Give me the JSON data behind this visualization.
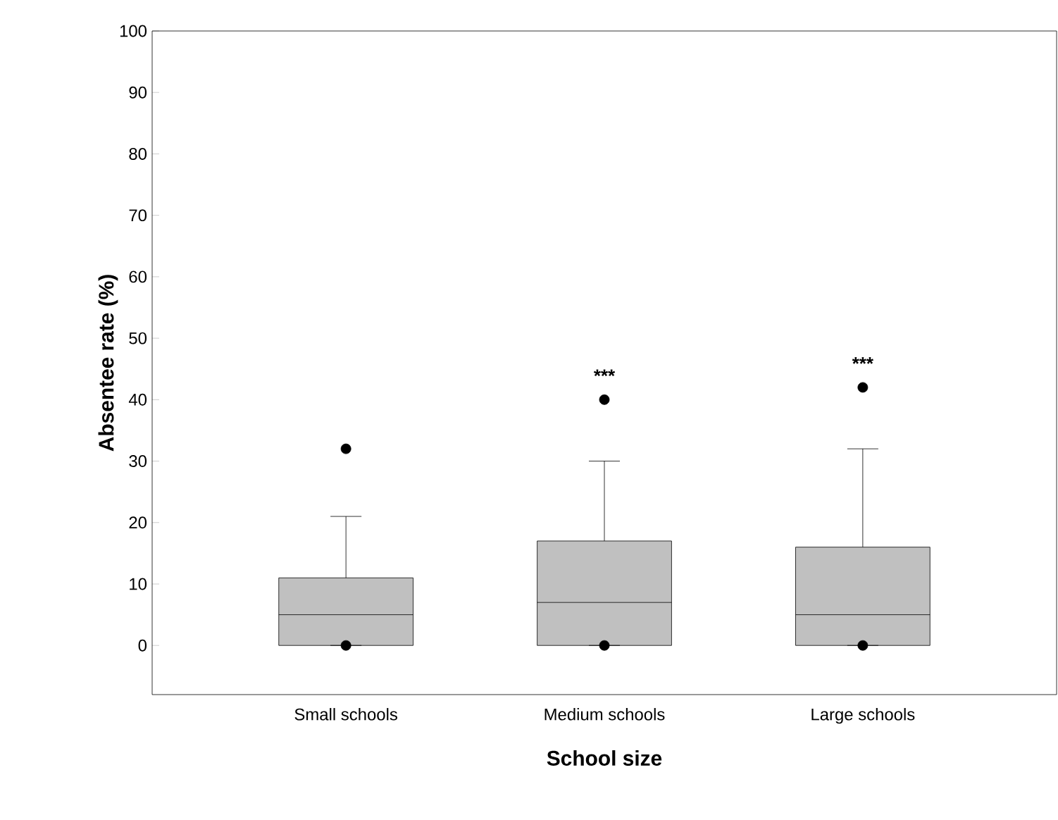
{
  "chart_data": {
    "type": "box",
    "xlabel": "School size",
    "ylabel": "Absentee rate (%)",
    "categories": [
      "Small schools",
      "Medium schools",
      "Large schools"
    ],
    "boxes": [
      {
        "low": 0,
        "q1": 0,
        "median": 5,
        "q3": 11,
        "high": 21,
        "outliers": [
          32,
          0
        ]
      },
      {
        "low": 0,
        "q1": 0,
        "median": 7,
        "q3": 17,
        "high": 30,
        "outliers": [
          40,
          0
        ]
      },
      {
        "low": 0,
        "q1": 0,
        "median": 5,
        "q3": 16,
        "high": 32,
        "outliers": [
          42,
          0
        ]
      }
    ],
    "color": "#c0c0c0",
    "ylim": [
      -8,
      100
    ],
    "yticks": [
      0,
      10,
      20,
      30,
      40,
      50,
      60,
      70,
      80,
      90,
      100
    ],
    "grid": false,
    "marker": "circle",
    "annotations": [
      "***",
      "***"
    ]
  }
}
